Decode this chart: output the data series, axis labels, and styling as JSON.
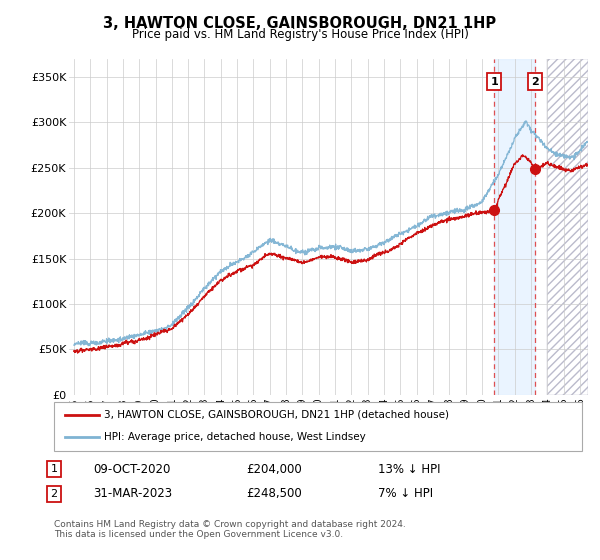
{
  "title": "3, HAWTON CLOSE, GAINSBOROUGH, DN21 1HP",
  "subtitle": "Price paid vs. HM Land Registry's House Price Index (HPI)",
  "ylabel_ticks": [
    "£0",
    "£50K",
    "£100K",
    "£150K",
    "£200K",
    "£250K",
    "£300K",
    "£350K"
  ],
  "ylim": [
    0,
    370000
  ],
  "xlim_start": 1994.7,
  "xlim_end": 2026.5,
  "hpi_color": "#7fb3d3",
  "price_color": "#cc1111",
  "marker1_x": 2020.77,
  "marker1_y": 204000,
  "marker1_date": "09-OCT-2020",
  "marker1_price": "£204,000",
  "marker1_pct": "13% ↓ HPI",
  "marker2_x": 2023.25,
  "marker2_y": 248500,
  "marker2_date": "31-MAR-2023",
  "marker2_price": "£248,500",
  "marker2_pct": "7% ↓ HPI",
  "legend_line1": "3, HAWTON CLOSE, GAINSBOROUGH, DN21 1HP (detached house)",
  "legend_line2": "HPI: Average price, detached house, West Lindsey",
  "footnote": "Contains HM Land Registry data © Crown copyright and database right 2024.\nThis data is licensed under the Open Government Licence v3.0.",
  "shading_start": 2020.77,
  "shading_end": 2023.25,
  "hatch_start": 2024.0,
  "hatch_end": 2026.5
}
